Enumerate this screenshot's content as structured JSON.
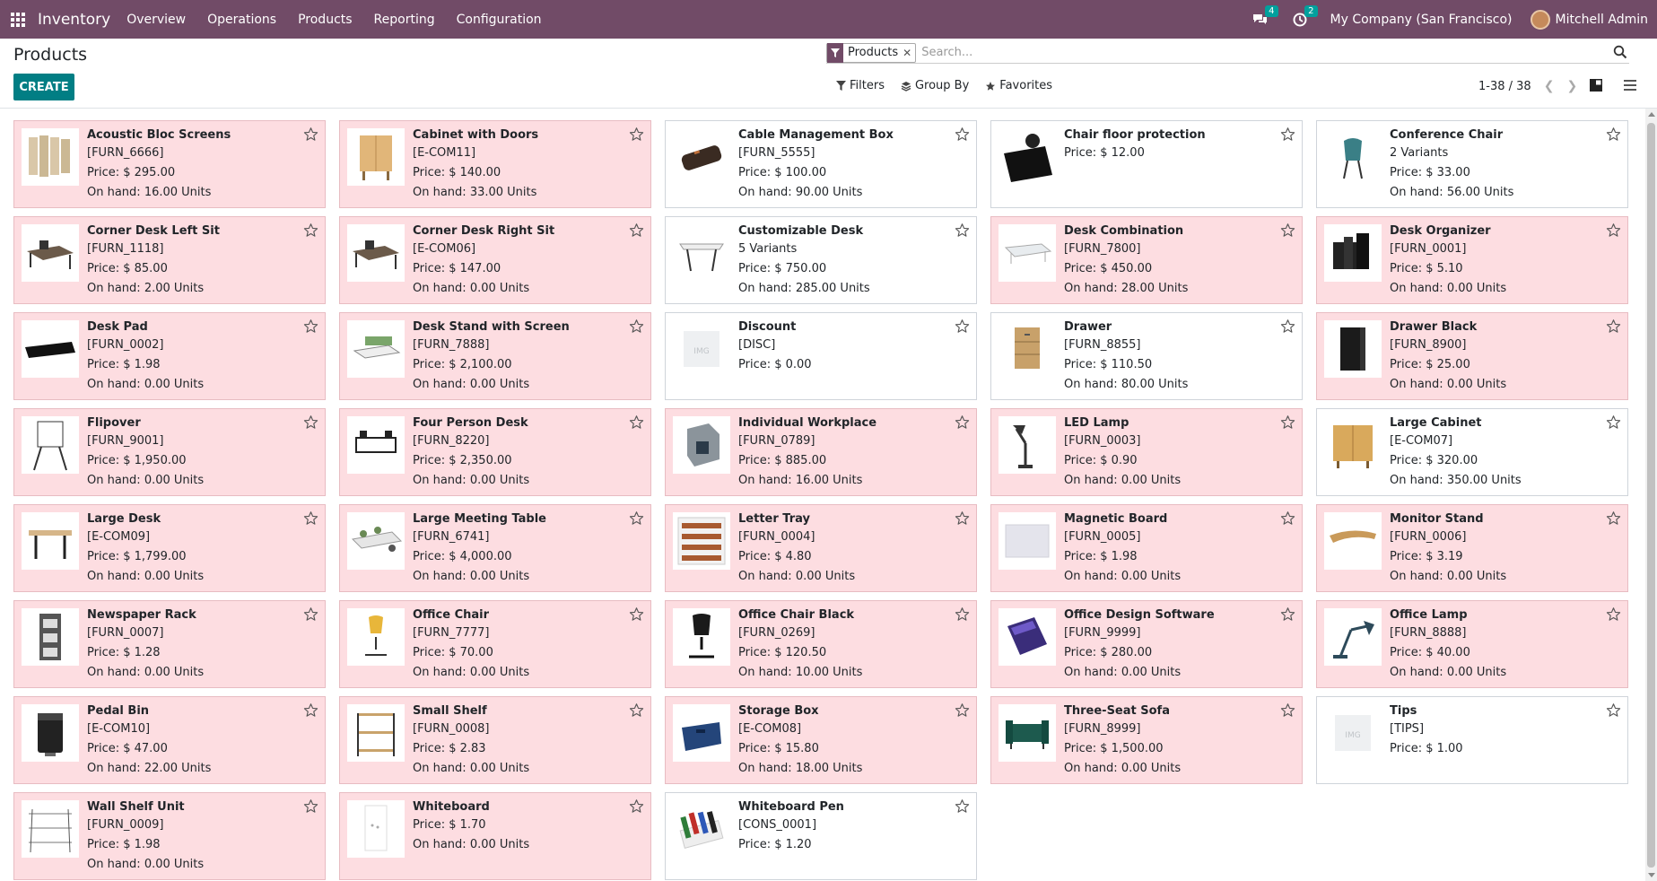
{
  "navbar": {
    "app_name": "Inventory",
    "menu": [
      "Overview",
      "Operations",
      "Products",
      "Reporting",
      "Configuration"
    ],
    "messages_count": "4",
    "activities_count": "2",
    "company": "My Company (San Francisco)",
    "user": "Mitchell Admin"
  },
  "control_panel": {
    "title": "Products",
    "create_label": "CREATE",
    "facet_label": "Products",
    "search_placeholder": "Search...",
    "filters_label": "Filters",
    "group_by_label": "Group By",
    "favorites_label": "Favorites",
    "pager": "1-38 / 38"
  },
  "colors": {
    "navbar": "#714B67",
    "primary": "#017E84",
    "pink_card": "#fddde1"
  },
  "products": [
    {
      "name": "Acoustic Bloc Screens",
      "lines": [
        "[FURN_6666]",
        "Price: $ 295.00",
        "On hand: 16.00 Units"
      ],
      "pink": true,
      "icon": "acoustic-screen"
    },
    {
      "name": "Cabinet with Doors",
      "lines": [
        "[E-COM11]",
        "Price: $ 140.00",
        "On hand: 33.00 Units"
      ],
      "pink": true,
      "icon": "cabinet"
    },
    {
      "name": "Cable Management Box",
      "lines": [
        "[FURN_5555]",
        "Price: $ 100.00",
        "On hand: 90.00 Units"
      ],
      "pink": false,
      "icon": "cable-box"
    },
    {
      "name": "Chair floor protection",
      "lines": [
        "Price: $ 12.00"
      ],
      "pink": false,
      "icon": "floor-mat"
    },
    {
      "name": "Conference Chair",
      "lines": [
        "2 Variants",
        "Price: $ 33.00",
        "On hand: 56.00 Units"
      ],
      "pink": false,
      "bold_first": true,
      "icon": "chair"
    },
    {
      "name": "Corner Desk Left Sit",
      "lines": [
        "[FURN_1118]",
        "Price: $ 85.00",
        "On hand: 2.00 Units"
      ],
      "pink": true,
      "icon": "corner-desk"
    },
    {
      "name": "Corner Desk Right Sit",
      "lines": [
        "[E-COM06]",
        "Price: $ 147.00",
        "On hand: 0.00 Units"
      ],
      "pink": true,
      "icon": "corner-desk"
    },
    {
      "name": "Customizable Desk",
      "lines": [
        "5 Variants",
        "Price: $ 750.00",
        "On hand: 285.00 Units"
      ],
      "pink": false,
      "bold_first": true,
      "icon": "desk"
    },
    {
      "name": "Desk Combination",
      "lines": [
        "[FURN_7800]",
        "Price: $ 450.00",
        "On hand: 28.00 Units"
      ],
      "pink": true,
      "icon": "desk-glass"
    },
    {
      "name": "Desk Organizer",
      "lines": [
        "[FURN_0001]",
        "Price: $ 5.10",
        "On hand: 0.00 Units"
      ],
      "pink": true,
      "icon": "organizer"
    },
    {
      "name": "Desk Pad",
      "lines": [
        "[FURN_0002]",
        "Price: $ 1.98",
        "On hand: 0.00 Units"
      ],
      "pink": true,
      "icon": "desk-pad"
    },
    {
      "name": "Desk Stand with Screen",
      "lines": [
        "[FURN_7888]",
        "Price: $ 2,100.00",
        "On hand: 0.00 Units"
      ],
      "pink": true,
      "icon": "desk-stand"
    },
    {
      "name": "Discount",
      "lines": [
        "[DISC]",
        "Price: $ 0.00"
      ],
      "pink": false,
      "icon": "placeholder"
    },
    {
      "name": "Drawer",
      "lines": [
        "[FURN_8855]",
        "Price: $ 110.50",
        "On hand: 80.00 Units"
      ],
      "pink": false,
      "icon": "drawer"
    },
    {
      "name": "Drawer Black",
      "lines": [
        "[FURN_8900]",
        "Price: $ 25.00",
        "On hand: 0.00 Units"
      ],
      "pink": true,
      "icon": "drawer-black"
    },
    {
      "name": "Flipover",
      "lines": [
        "[FURN_9001]",
        "Price: $ 1,950.00",
        "On hand: 0.00 Units"
      ],
      "pink": true,
      "icon": "flipover"
    },
    {
      "name": "Four Person Desk",
      "lines": [
        "[FURN_8220]",
        "Price: $ 2,350.00",
        "On hand: 0.00 Units"
      ],
      "pink": true,
      "icon": "four-desk"
    },
    {
      "name": "Individual Workplace",
      "lines": [
        "[FURN_0789]",
        "Price: $ 885.00",
        "On hand: 16.00 Units"
      ],
      "pink": true,
      "icon": "workplace"
    },
    {
      "name": "LED Lamp",
      "lines": [
        "[FURN_0003]",
        "Price: $ 0.90",
        "On hand: 0.00 Units"
      ],
      "pink": true,
      "icon": "lamp"
    },
    {
      "name": "Large Cabinet",
      "lines": [
        "[E-COM07]",
        "Price: $ 320.00",
        "On hand: 350.00 Units"
      ],
      "pink": false,
      "icon": "large-cabinet"
    },
    {
      "name": "Large Desk",
      "lines": [
        "[E-COM09]",
        "Price: $ 1,799.00",
        "On hand: 0.00 Units"
      ],
      "pink": true,
      "icon": "large-desk"
    },
    {
      "name": "Large Meeting Table",
      "lines": [
        "[FURN_6741]",
        "Price: $ 4,000.00",
        "On hand: 0.00 Units"
      ],
      "pink": true,
      "icon": "meeting-table"
    },
    {
      "name": "Letter Tray",
      "lines": [
        "[FURN_0004]",
        "Price: $ 4.80",
        "On hand: 0.00 Units"
      ],
      "pink": true,
      "icon": "letter-tray"
    },
    {
      "name": "Magnetic Board",
      "lines": [
        "[FURN_0005]",
        "Price: $ 1.98",
        "On hand: 0.00 Units"
      ],
      "pink": true,
      "icon": "board"
    },
    {
      "name": "Monitor Stand",
      "lines": [
        "[FURN_0006]",
        "Price: $ 3.19",
        "On hand: 0.00 Units"
      ],
      "pink": true,
      "icon": "monitor-stand"
    },
    {
      "name": "Newspaper Rack",
      "lines": [
        "[FURN_0007]",
        "Price: $ 1.28",
        "On hand: 0.00 Units"
      ],
      "pink": true,
      "icon": "rack"
    },
    {
      "name": "Office Chair",
      "lines": [
        "[FURN_7777]",
        "Price: $ 70.00",
        "On hand: 0.00 Units"
      ],
      "pink": true,
      "icon": "office-chair"
    },
    {
      "name": "Office Chair Black",
      "lines": [
        "[FURN_0269]",
        "Price: $ 120.50",
        "On hand: 10.00 Units"
      ],
      "pink": true,
      "icon": "office-chair-black"
    },
    {
      "name": "Office Design Software",
      "lines": [
        "[FURN_9999]",
        "Price: $ 280.00",
        "On hand: 0.00 Units"
      ],
      "pink": true,
      "icon": "software"
    },
    {
      "name": "Office Lamp",
      "lines": [
        "[FURN_8888]",
        "Price: $ 40.00",
        "On hand: 0.00 Units"
      ],
      "pink": true,
      "icon": "office-lamp"
    },
    {
      "name": "Pedal Bin",
      "lines": [
        "[E-COM10]",
        "Price: $ 47.00",
        "On hand: 22.00 Units"
      ],
      "pink": true,
      "icon": "bin"
    },
    {
      "name": "Small Shelf",
      "lines": [
        "[FURN_0008]",
        "Price: $ 2.83",
        "On hand: 0.00 Units"
      ],
      "pink": true,
      "icon": "shelf"
    },
    {
      "name": "Storage Box",
      "lines": [
        "[E-COM08]",
        "Price: $ 15.80",
        "On hand: 18.00 Units"
      ],
      "pink": true,
      "icon": "storage-box"
    },
    {
      "name": "Three-Seat Sofa",
      "lines": [
        "[FURN_8999]",
        "Price: $ 1,500.00",
        "On hand: 0.00 Units"
      ],
      "pink": true,
      "icon": "sofa"
    },
    {
      "name": "Tips",
      "lines": [
        "[TIPS]",
        "Price: $ 1.00"
      ],
      "pink": false,
      "icon": "placeholder"
    },
    {
      "name": "Wall Shelf Unit",
      "lines": [
        "[FURN_0009]",
        "Price: $ 1.98",
        "On hand: 0.00 Units"
      ],
      "pink": true,
      "icon": "wall-shelf"
    },
    {
      "name": "Whiteboard",
      "lines": [
        "Price: $ 1.70",
        "On hand: 0.00 Units"
      ],
      "pink": true,
      "icon": "whiteboard"
    },
    {
      "name": "Whiteboard Pen",
      "lines": [
        "[CONS_0001]",
        "Price: $ 1.20"
      ],
      "pink": false,
      "icon": "pens"
    }
  ]
}
